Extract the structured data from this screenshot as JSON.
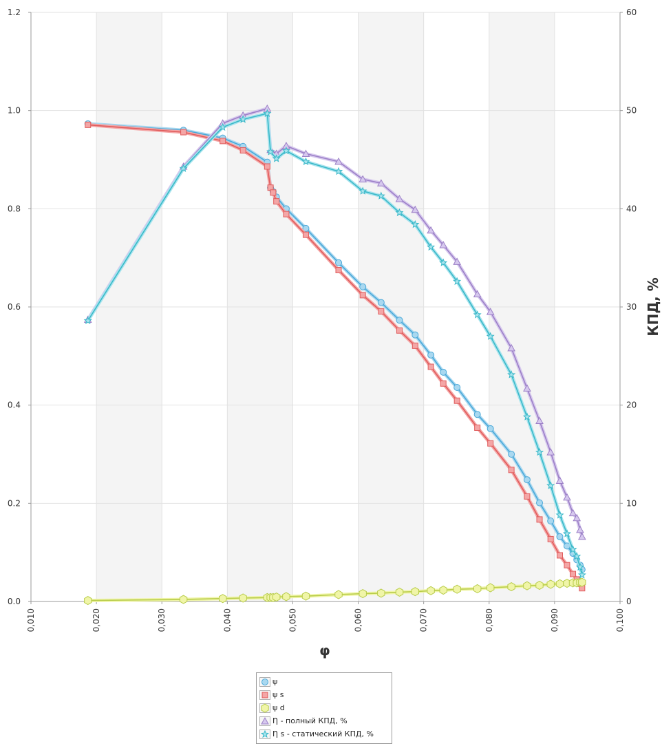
{
  "chart_data": {
    "type": "line",
    "xlabel": "φ",
    "ylabel": "",
    "y2label": "КПД, %",
    "xlim": [
      0.01,
      0.1
    ],
    "ylim": [
      0,
      1.2
    ],
    "y2lim": [
      0,
      60
    ],
    "x_ticks": [
      "0,010",
      "0,020",
      "0,030",
      "0,040",
      "0,050",
      "0,060",
      "0,070",
      "0,080",
      "0,090",
      "0,100"
    ],
    "y_ticks": [
      "0.0",
      "0.2",
      "0.4",
      "0.6",
      "0.8",
      "1.0",
      "1.2"
    ],
    "y2_ticks": [
      "0",
      "10",
      "20",
      "30",
      "40",
      "50",
      "60"
    ],
    "grid": true,
    "legend_position": "bottom",
    "series": [
      {
        "name": "ψ",
        "axis": "left",
        "marker": "circle",
        "color": "#4aa8d8",
        "fill": "#a9d8f0",
        "x": [
          0.0187,
          0.0333,
          0.0393,
          0.0424,
          0.0461,
          0.0466,
          0.047,
          0.0475,
          0.049,
          0.052,
          0.057,
          0.0607,
          0.0635,
          0.0663,
          0.0687,
          0.0711,
          0.073,
          0.0751,
          0.0782,
          0.0802,
          0.0834,
          0.0858,
          0.0877,
          0.0894,
          0.0908,
          0.0919,
          0.0928,
          0.0934,
          0.0939,
          0.0942
        ],
        "y": [
          0.973,
          0.96,
          0.944,
          0.927,
          0.895,
          0.843,
          0.835,
          0.824,
          0.8,
          0.76,
          0.69,
          0.641,
          0.609,
          0.573,
          0.543,
          0.502,
          0.467,
          0.436,
          0.381,
          0.352,
          0.3,
          0.248,
          0.201,
          0.164,
          0.132,
          0.113,
          0.098,
          0.085,
          0.074,
          0.065
        ]
      },
      {
        "name": "ψ s",
        "axis": "left",
        "marker": "square",
        "color": "#e05c5c",
        "fill": "#f4a6a6",
        "x": [
          0.0187,
          0.0333,
          0.0393,
          0.0424,
          0.0461,
          0.0466,
          0.047,
          0.0475,
          0.049,
          0.052,
          0.057,
          0.0607,
          0.0635,
          0.0663,
          0.0687,
          0.0711,
          0.073,
          0.0751,
          0.0782,
          0.0802,
          0.0834,
          0.0858,
          0.0877,
          0.0894,
          0.0908,
          0.0919,
          0.0928,
          0.0934,
          0.0939,
          0.0942
        ],
        "y": [
          0.971,
          0.956,
          0.938,
          0.919,
          0.886,
          0.843,
          0.833,
          0.815,
          0.789,
          0.747,
          0.675,
          0.624,
          0.591,
          0.552,
          0.521,
          0.478,
          0.444,
          0.409,
          0.354,
          0.322,
          0.268,
          0.214,
          0.167,
          0.127,
          0.094,
          0.074,
          0.056,
          0.045,
          0.036,
          0.027
        ]
      },
      {
        "name": "ψ d",
        "axis": "left",
        "marker": "hexagon",
        "color": "#b8cc4a",
        "fill": "#f0f5a8",
        "x": [
          0.0187,
          0.0333,
          0.0393,
          0.0424,
          0.0461,
          0.0466,
          0.047,
          0.0475,
          0.049,
          0.052,
          0.057,
          0.0607,
          0.0635,
          0.0663,
          0.0687,
          0.0711,
          0.073,
          0.0751,
          0.0782,
          0.0802,
          0.0834,
          0.0858,
          0.0877,
          0.0894,
          0.0908,
          0.0919,
          0.0928,
          0.0934,
          0.0939,
          0.0942
        ],
        "y": [
          0.002,
          0.004,
          0.006,
          0.007,
          0.008,
          0.008,
          0.008,
          0.009,
          0.01,
          0.011,
          0.014,
          0.016,
          0.017,
          0.019,
          0.02,
          0.022,
          0.023,
          0.025,
          0.026,
          0.028,
          0.03,
          0.032,
          0.033,
          0.035,
          0.036,
          0.037,
          0.038,
          0.038,
          0.039,
          0.039
        ]
      },
      {
        "name": "Ƞ - полный КПД, %",
        "axis": "right",
        "marker": "triangle",
        "color": "#9b7fc6",
        "fill": "#d6c8ee",
        "x": [
          0.0187,
          0.0333,
          0.0393,
          0.0424,
          0.0461,
          0.0466,
          0.0475,
          0.049,
          0.052,
          0.057,
          0.0607,
          0.0635,
          0.0663,
          0.0687,
          0.0711,
          0.073,
          0.0751,
          0.0782,
          0.0802,
          0.0834,
          0.0858,
          0.0877,
          0.0894,
          0.0908,
          0.0919,
          0.0928,
          0.0934,
          0.0939,
          0.0942
        ],
        "y": [
          28.7,
          44.3,
          48.7,
          49.5,
          50.2,
          46.0,
          45.6,
          46.4,
          45.6,
          44.8,
          43.0,
          42.6,
          41.0,
          39.9,
          37.8,
          36.3,
          34.6,
          31.3,
          29.5,
          25.8,
          21.7,
          18.4,
          15.2,
          12.3,
          10.6,
          9.0,
          8.5,
          7.3,
          6.6
        ]
      },
      {
        "name": "Ƞ s - статический КПД, %",
        "axis": "right",
        "marker": "star",
        "color": "#3ab8c8",
        "fill": "#a8e4ee",
        "x": [
          0.0187,
          0.0333,
          0.0393,
          0.0424,
          0.0461,
          0.0466,
          0.0475,
          0.049,
          0.052,
          0.057,
          0.0607,
          0.0635,
          0.0663,
          0.0687,
          0.0711,
          0.073,
          0.0751,
          0.0782,
          0.0802,
          0.0834,
          0.0858,
          0.0877,
          0.0894,
          0.0908,
          0.0919,
          0.0928,
          0.0934,
          0.0939,
          0.0942
        ],
        "y": [
          28.6,
          44.1,
          48.3,
          49.1,
          49.7,
          45.8,
          45.1,
          45.9,
          44.8,
          43.8,
          41.8,
          41.3,
          39.6,
          38.4,
          36.1,
          34.5,
          32.6,
          29.2,
          27.0,
          23.1,
          18.8,
          15.2,
          11.8,
          8.8,
          6.9,
          5.3,
          4.6,
          3.5,
          2.7
        ]
      }
    ]
  }
}
